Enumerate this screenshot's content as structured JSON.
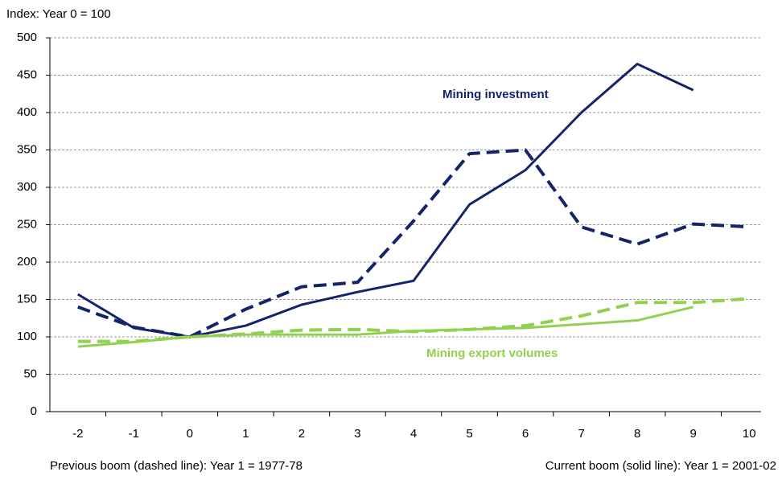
{
  "chart_data": {
    "type": "line",
    "y_label": "Index: Year 0 = 100",
    "notes": [
      "Previous boom (dashed line): Year 1 = 1977-78",
      "Current boom (solid line): Year 1 = 2001-02"
    ],
    "annotations": [
      {
        "text": "Mining investment",
        "color": "#13246b"
      },
      {
        "text": "Mining export volumes",
        "color": "#92d050"
      }
    ],
    "categories": [
      "-2",
      "-1",
      "0",
      "1",
      "2",
      "3",
      "4",
      "5",
      "6",
      "7",
      "8",
      "9",
      "10"
    ],
    "series": [
      {
        "color": "#13246b",
        "dashed": false,
        "values": [
          157,
          112,
          100,
          115,
          143,
          160,
          175,
          277,
          323,
          400,
          465,
          430,
          null
        ]
      },
      {
        "color": "#13246b",
        "dashed": true,
        "values": [
          140,
          113,
          100,
          137,
          167,
          173,
          255,
          345,
          350,
          247,
          224,
          251,
          247
        ]
      },
      {
        "color": "#92d050",
        "dashed": false,
        "values": [
          87,
          93,
          100,
          103,
          103,
          103,
          108,
          110,
          112,
          117,
          122,
          140,
          null
        ]
      },
      {
        "color": "#92d050",
        "dashed": true,
        "values": [
          94,
          94,
          100,
          104,
          109,
          110,
          107,
          110,
          115,
          128,
          146,
          146,
          151
        ]
      }
    ],
    "ylim": [
      0,
      500
    ],
    "yticks": [
      0,
      50,
      100,
      150,
      200,
      250,
      300,
      350,
      400,
      450,
      500
    ],
    "grid": true
  }
}
